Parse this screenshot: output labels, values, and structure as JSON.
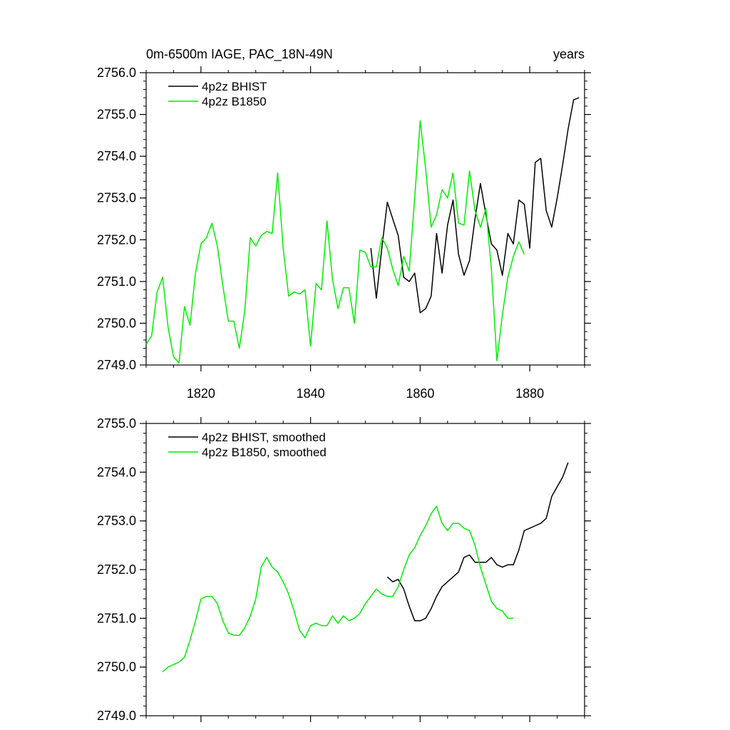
{
  "title_left": "0m-6500m IAGE, PAC_18N-49N",
  "title_right": "years",
  "chart_data": [
    {
      "type": "line",
      "xlim": [
        1810,
        1890
      ],
      "ylim": [
        2749.0,
        2756.0
      ],
      "x_ticks": [
        1820,
        1840,
        1860,
        1880
      ],
      "x_tick_labels": [
        "1820",
        "1840",
        "1860",
        "1880"
      ],
      "y_ticks": [
        2749.0,
        2750.0,
        2751.0,
        2752.0,
        2753.0,
        2754.0,
        2755.0,
        2756.0
      ],
      "y_tick_labels": [
        "2749.0",
        "2750.0",
        "2751.0",
        "2752.0",
        "2753.0",
        "2754.0",
        "2755.0",
        "2756.0"
      ],
      "legend_position": "top-left",
      "series": [
        {
          "name": "4p2z BHIST",
          "color": "#000000",
          "x": [
            1851,
            1852,
            1853,
            1854,
            1855,
            1856,
            1857,
            1858,
            1859,
            1860,
            1861,
            1862,
            1863,
            1864,
            1865,
            1866,
            1867,
            1868,
            1869,
            1870,
            1871,
            1872,
            1873,
            1874,
            1875,
            1876,
            1877,
            1878,
            1879,
            1880,
            1881,
            1882,
            1883,
            1884,
            1885,
            1886,
            1887,
            1888,
            1889
          ],
          "y": [
            2751.8,
            2750.6,
            2751.8,
            2752.9,
            2752.5,
            2752.1,
            2751.1,
            2751.0,
            2751.2,
            2750.25,
            2750.35,
            2750.65,
            2752.15,
            2751.2,
            2752.35,
            2752.95,
            2751.65,
            2751.15,
            2751.5,
            2752.5,
            2753.35,
            2752.6,
            2751.9,
            2751.75,
            2751.15,
            2752.15,
            2751.9,
            2752.95,
            2752.85,
            2751.8,
            2753.85,
            2753.95,
            2752.7,
            2752.3,
            2753.0,
            2753.8,
            2754.65,
            2755.35,
            2755.4
          ]
        },
        {
          "name": "4p2z B1850",
          "color": "#00ee00",
          "x": [
            1810,
            1811,
            1812,
            1813,
            1814,
            1815,
            1816,
            1817,
            1818,
            1819,
            1820,
            1821,
            1822,
            1823,
            1824,
            1825,
            1826,
            1827,
            1828,
            1829,
            1830,
            1831,
            1832,
            1833,
            1834,
            1835,
            1836,
            1837,
            1838,
            1839,
            1840,
            1841,
            1842,
            1843,
            1844,
            1845,
            1846,
            1847,
            1848,
            1849,
            1850,
            1851,
            1852,
            1853,
            1854,
            1855,
            1856,
            1857,
            1858,
            1859,
            1860,
            1861,
            1862,
            1863,
            1864,
            1865,
            1866,
            1867,
            1868,
            1869,
            1870,
            1871,
            1872,
            1873,
            1874,
            1875,
            1876,
            1877,
            1878,
            1879
          ],
          "y": [
            2749.5,
            2749.7,
            2750.75,
            2751.1,
            2749.9,
            2749.2,
            2749.05,
            2750.4,
            2749.95,
            2751.2,
            2751.9,
            2752.05,
            2752.4,
            2751.85,
            2750.9,
            2750.05,
            2750.05,
            2749.4,
            2750.3,
            2752.05,
            2751.85,
            2752.1,
            2752.2,
            2752.15,
            2753.6,
            2751.8,
            2750.65,
            2750.75,
            2750.7,
            2750.8,
            2749.45,
            2750.95,
            2750.8,
            2752.45,
            2751.05,
            2750.35,
            2750.85,
            2750.85,
            2750.0,
            2751.75,
            2751.7,
            2751.35,
            2751.35,
            2752.05,
            2751.8,
            2751.3,
            2750.9,
            2751.6,
            2751.25,
            2753.0,
            2754.85,
            2753.7,
            2752.3,
            2752.6,
            2753.2,
            2753.0,
            2753.6,
            2752.4,
            2752.35,
            2753.65,
            2752.7,
            2752.3,
            2752.75,
            2751.3,
            2749.1,
            2750.2,
            2751.1,
            2751.6,
            2751.95,
            2751.65
          ]
        }
      ]
    },
    {
      "type": "line",
      "xlim": [
        1810,
        1890
      ],
      "ylim": [
        2749.0,
        2755.0
      ],
      "x_ticks": [
        1820,
        1840,
        1860,
        1880
      ],
      "x_tick_labels": [],
      "y_ticks": [
        2749.0,
        2750.0,
        2751.0,
        2752.0,
        2753.0,
        2754.0,
        2755.0
      ],
      "y_tick_labels": [
        "2749.0",
        "2750.0",
        "2751.0",
        "2752.0",
        "2753.0",
        "2754.0",
        "2755.0"
      ],
      "legend_position": "top-left",
      "series": [
        {
          "name": "4p2z BHIST, smoothed",
          "color": "#000000",
          "x": [
            1854,
            1855,
            1856,
            1857,
            1858,
            1859,
            1860,
            1861,
            1862,
            1863,
            1864,
            1865,
            1866,
            1867,
            1868,
            1869,
            1870,
            1871,
            1872,
            1873,
            1874,
            1875,
            1876,
            1877,
            1878,
            1879,
            1880,
            1881,
            1882,
            1883,
            1884,
            1885,
            1886,
            1887
          ],
          "y": [
            2751.85,
            2751.75,
            2751.8,
            2751.6,
            2751.25,
            2750.95,
            2750.95,
            2751.0,
            2751.2,
            2751.45,
            2751.65,
            2751.75,
            2751.85,
            2751.95,
            2752.25,
            2752.3,
            2752.15,
            2752.15,
            2752.15,
            2752.25,
            2752.1,
            2752.05,
            2752.1,
            2752.1,
            2752.4,
            2752.8,
            2752.85,
            2752.9,
            2752.95,
            2753.05,
            2753.5,
            2753.7,
            2753.9,
            2754.2
          ]
        },
        {
          "name": "4p2z B1850, smoothed",
          "color": "#00ee00",
          "x": [
            1813,
            1814,
            1815,
            1816,
            1817,
            1818,
            1819,
            1820,
            1821,
            1822,
            1823,
            1824,
            1825,
            1826,
            1827,
            1828,
            1829,
            1830,
            1831,
            1832,
            1833,
            1834,
            1835,
            1836,
            1837,
            1838,
            1839,
            1840,
            1841,
            1842,
            1843,
            1844,
            1845,
            1846,
            1847,
            1848,
            1849,
            1850,
            1851,
            1852,
            1853,
            1854,
            1855,
            1856,
            1857,
            1858,
            1859,
            1860,
            1861,
            1862,
            1863,
            1864,
            1865,
            1866,
            1867,
            1868,
            1869,
            1870,
            1871,
            1872,
            1873,
            1874,
            1875,
            1876,
            1877
          ],
          "y": [
            2749.9,
            2750.0,
            2750.05,
            2750.1,
            2750.2,
            2750.55,
            2750.95,
            2751.4,
            2751.45,
            2751.45,
            2751.3,
            2750.95,
            2750.7,
            2750.65,
            2750.65,
            2750.8,
            2751.05,
            2751.4,
            2752.05,
            2752.25,
            2752.05,
            2751.95,
            2751.75,
            2751.5,
            2751.15,
            2750.75,
            2750.6,
            2750.85,
            2750.9,
            2750.85,
            2750.85,
            2751.05,
            2750.9,
            2751.05,
            2750.95,
            2751.0,
            2751.1,
            2751.3,
            2751.45,
            2751.6,
            2751.5,
            2751.45,
            2751.45,
            2751.65,
            2752.0,
            2752.3,
            2752.45,
            2752.7,
            2752.9,
            2753.15,
            2753.3,
            2752.95,
            2752.8,
            2752.95,
            2752.95,
            2752.85,
            2752.8,
            2752.5,
            2752.05,
            2751.7,
            2751.35,
            2751.2,
            2751.15,
            2751.0,
            2751.0
          ]
        }
      ]
    }
  ]
}
